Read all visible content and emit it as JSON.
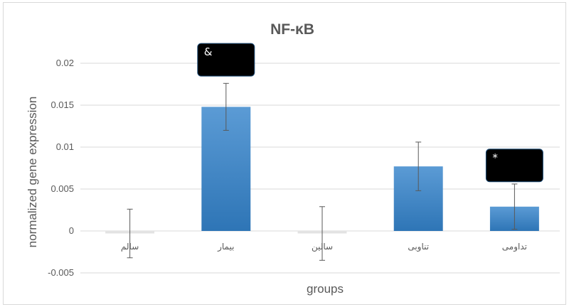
{
  "chart_data": {
    "type": "bar",
    "title": "NF-κB",
    "xlabel": "groups",
    "ylabel": "normalized gene expression",
    "categories": [
      "سالم",
      "بیمار",
      "سالین",
      "تناوبی",
      "تداومی"
    ],
    "values": [
      -0.0003,
      0.0148,
      -0.0003,
      0.0077,
      0.0029
    ],
    "error": [
      0.0029,
      0.0028,
      0.0032,
      0.0029,
      0.0027
    ],
    "ylim": [
      -0.005,
      0.02
    ],
    "yticks": [
      -0.005,
      0,
      0.005,
      0.01,
      0.015,
      0.02
    ],
    "ytick_labels": [
      "-0.005",
      "0",
      "0.005",
      "0.01",
      "0.015",
      "0.02"
    ],
    "grid": true,
    "legend": "none",
    "colors": {
      "bar_top": "#5b9bd5",
      "bar_bottom": "#2e75b6",
      "gridline": "#d9d9d9",
      "text": "#595959",
      "annotation_box": "#000000"
    },
    "annotations": [
      {
        "text": "&",
        "category_index": 1,
        "y": 0.0205
      },
      {
        "text": "*",
        "category_index": 4,
        "y": 0.0079
      }
    ]
  }
}
